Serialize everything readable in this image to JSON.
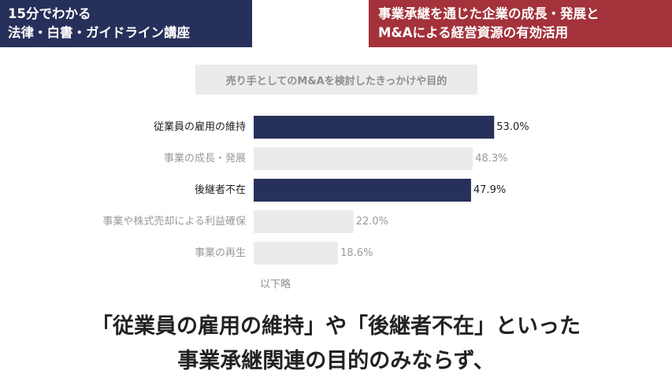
{
  "header": {
    "left_line1": "15分でわかる",
    "left_line2": "法律・白書・ガイドライン講座",
    "right_line1": "事業承継を通じた企業の成長・発展と",
    "right_line2": "M&Aによる経営資源の有効活用"
  },
  "colors": {
    "highlight_bar": "#27305a",
    "muted_bar": "#ebebeb",
    "highlight_text": "#222222",
    "muted_text": "#9a9a9a"
  },
  "chart_data": {
    "type": "bar",
    "orientation": "horizontal",
    "title": "売り手としてのM&Aを検討したきっかけや目的",
    "categories": [
      "従業員の雇用の維持",
      "事業の成長・発展",
      "後継者不在",
      "事業や株式売却による利益確保",
      "事業の再生"
    ],
    "values": [
      53.0,
      48.3,
      47.9,
      22.0,
      18.6
    ],
    "value_labels": [
      "53.0%",
      "48.3%",
      "47.9%",
      "22.0%",
      "18.6%"
    ],
    "highlighted": [
      true,
      false,
      true,
      false,
      false
    ],
    "xlim": [
      0,
      100
    ],
    "grid": false,
    "legend": "none",
    "footnote": "以下略"
  },
  "caption": {
    "line1": "「従業員の雇用の維持」や「後継者不在」といった",
    "line2": "事業承継関連の目的のみならず、"
  }
}
